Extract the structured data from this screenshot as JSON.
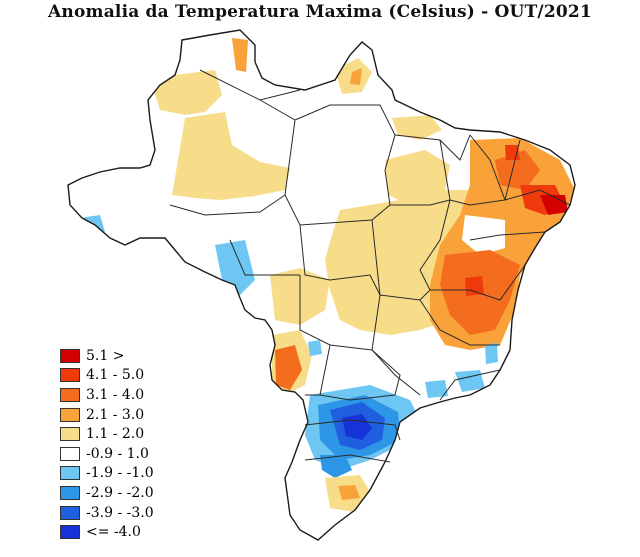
{
  "title": "Anomalia da Temperatura Maxima (Celsius) - OUT/2021",
  "colors": {
    "land": "#ffffff",
    "border": "#2a2a2a"
  },
  "legend": [
    {
      "label": "5.1 >",
      "color": "#d40000"
    },
    {
      "label": "4.1 - 5.0",
      "color": "#ef3a0c"
    },
    {
      "label": "3.1 - 4.0",
      "color": "#f46d1f"
    },
    {
      "label": "2.1 - 3.0",
      "color": "#f9a23a"
    },
    {
      "label": "1.1 - 2.0",
      "color": "#f7dc8a"
    },
    {
      "label": "-0.9 - 1.0",
      "color": "#ffffff"
    },
    {
      "label": "-1.9 - -1.0",
      "color": "#6ec6f2"
    },
    {
      "label": "-2.9 - -2.0",
      "color": "#2e96e6"
    },
    {
      "label": "-3.9 - -3.0",
      "color": "#1f5fe0"
    },
    {
      "label": "<= -4.0",
      "color": "#1533d6"
    }
  ]
}
